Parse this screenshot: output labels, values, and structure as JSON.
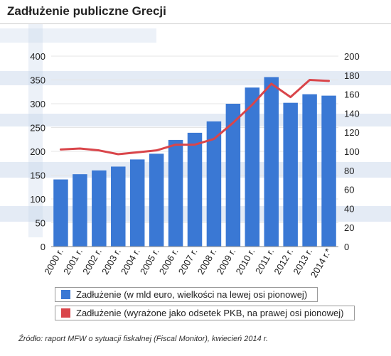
{
  "title": "Zadłużenie publiczne Grecji",
  "source": "Źródło: raport MFW o sytuacji fiskalnej (Fiscal Monitor), kwiecień 2014 r.",
  "colors": {
    "bar": "#3a78d4",
    "line": "#d9454a",
    "grid": "#e6e6e6",
    "flag_blue": "#c9d8ec"
  },
  "chart_data": {
    "type": "bar+line",
    "categories": [
      "2000 r.",
      "2001 r.",
      "2002 r.",
      "2003 r.",
      "2004 r.",
      "2005 r.",
      "2006 r.",
      "2007 r.",
      "2008 r.",
      "2009 r.",
      "2010 r.",
      "2011 r.",
      "2012 r.",
      "2013 r.",
      "2014 r.*"
    ],
    "left_axis": {
      "ylim": [
        0,
        400
      ],
      "ticks": [
        "0",
        "50",
        "100",
        "150",
        "200",
        "250",
        "300",
        "350",
        "400"
      ]
    },
    "right_axis": {
      "ylim": [
        0,
        200
      ],
      "ticks": [
        "0",
        "20",
        "40",
        "60",
        "80",
        "100",
        "120",
        "140",
        "160",
        "180",
        "200"
      ]
    },
    "series": [
      {
        "name": "Zadłużenie (w mld euro, wielkości na lewej osi pionowej)",
        "type": "bar",
        "axis": "left",
        "values": [
          141,
          152,
          160,
          168,
          183,
          195,
          224,
          239,
          263,
          300,
          334,
          356,
          302,
          320,
          317
        ]
      },
      {
        "name": "Zadłużenie (wyrażone jako odsetek PKB, na prawej osi pionowej)",
        "type": "line",
        "axis": "right",
        "values": [
          102,
          103,
          101,
          97,
          99,
          101,
          107,
          107,
          113,
          130,
          149,
          171,
          157,
          175,
          174
        ]
      }
    ],
    "legend_position": "bottom"
  }
}
